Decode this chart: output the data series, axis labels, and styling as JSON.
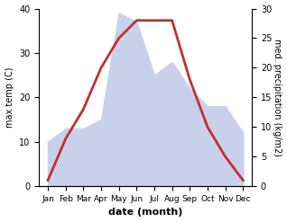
{
  "months": [
    "Jan",
    "Feb",
    "Mar",
    "Apr",
    "May",
    "Jun",
    "Jul",
    "Aug",
    "Sep",
    "Oct",
    "Nov",
    "Dec"
  ],
  "temp": [
    10,
    13,
    13,
    15,
    39,
    37,
    25,
    28,
    22,
    18,
    18,
    12
  ],
  "precip": [
    1,
    8,
    13,
    20,
    25,
    28,
    28,
    28,
    18,
    10,
    5,
    1
  ],
  "temp_fill_color": "#c8d0eb",
  "precip_color": "#c03030",
  "left_label": "max temp (C)",
  "right_label": "med. precipitation (kg/m2)",
  "xlabel": "date (month)",
  "ylim_left": [
    0,
    40
  ],
  "ylim_right": [
    0,
    30
  ],
  "yticks_left": [
    0,
    10,
    20,
    30,
    40
  ],
  "yticks_right": [
    0,
    5,
    10,
    15,
    20,
    25,
    30
  ],
  "bg_color": "#ffffff"
}
